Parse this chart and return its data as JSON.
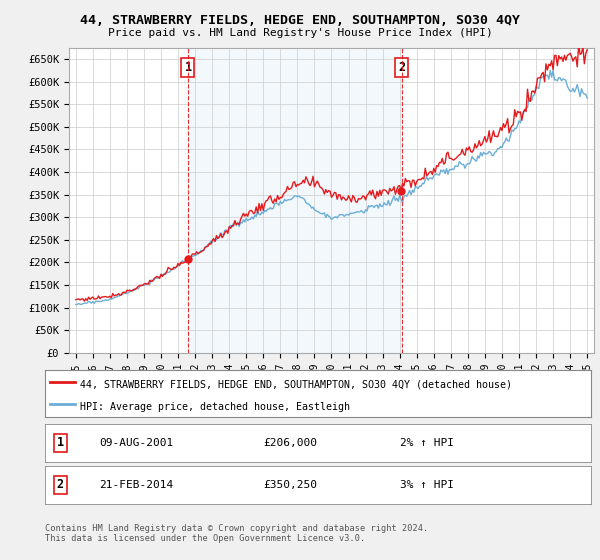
{
  "title": "44, STRAWBERRY FIELDS, HEDGE END, SOUTHAMPTON, SO30 4QY",
  "subtitle": "Price paid vs. HM Land Registry's House Price Index (HPI)",
  "legend_line1": "44, STRAWBERRY FIELDS, HEDGE END, SOUTHAMPTON, SO30 4QY (detached house)",
  "legend_line2": "HPI: Average price, detached house, Eastleigh",
  "annotation1_label": "1",
  "annotation1_date": "09-AUG-2001",
  "annotation1_price": "£206,000",
  "annotation1_hpi": "2% ↑ HPI",
  "annotation2_label": "2",
  "annotation2_date": "21-FEB-2014",
  "annotation2_price": "£350,250",
  "annotation2_hpi": "3% ↑ HPI",
  "footer": "Contains HM Land Registry data © Crown copyright and database right 2024.\nThis data is licensed under the Open Government Licence v3.0.",
  "ylim": [
    0,
    675000
  ],
  "yticks": [
    0,
    50000,
    100000,
    150000,
    200000,
    250000,
    300000,
    350000,
    400000,
    450000,
    500000,
    550000,
    600000,
    650000
  ],
  "xlim_start": 1994.6,
  "xlim_end": 2025.4,
  "hpi_color": "#6baed6",
  "price_color": "#e31a1c",
  "vline_color": "#e31a1c",
  "shade_color": "#d6eaf8",
  "grid_color": "#cccccc",
  "bg_color": "#f0f0f0",
  "plot_bg": "#ffffff",
  "sale1_year": 2001.58,
  "sale2_year": 2014.12,
  "sale1_price": 206000,
  "sale2_price": 350250
}
